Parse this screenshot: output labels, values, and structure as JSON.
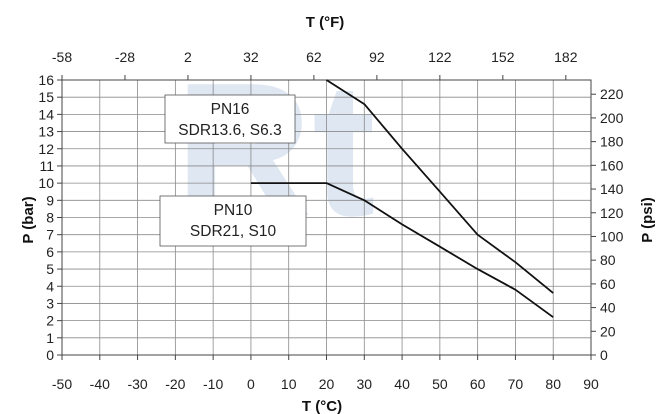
{
  "chart_data": {
    "type": "line",
    "xlabel": "T (°C)",
    "ylabel": "P (bar)",
    "x2label": "T (°F)",
    "y2label": "P (psi)",
    "xlim": [
      -50,
      90
    ],
    "ylim": [
      0,
      16
    ],
    "x2lim": [
      -58,
      194
    ],
    "y2lim": [
      0,
      232
    ],
    "x_ticks": [
      "-50",
      "-40",
      "-30",
      "-20",
      "-10",
      "0",
      "10",
      "20",
      "30",
      "40",
      "50",
      "60",
      "70",
      "80",
      "90"
    ],
    "y_ticks": [
      "0",
      "1",
      "2",
      "3",
      "4",
      "5",
      "6",
      "7",
      "8",
      "9",
      "10",
      "11",
      "12",
      "13",
      "14",
      "15",
      "16"
    ],
    "x2_ticks": [
      "-58",
      "-28",
      "2",
      "32",
      "62",
      "92",
      "122",
      "152",
      "182"
    ],
    "y2_ticks": [
      "0",
      "20",
      "40",
      "60",
      "80",
      "100",
      "120",
      "140",
      "160",
      "180",
      "200",
      "220"
    ],
    "grid": true,
    "series": [
      {
        "name": "PN16",
        "x": [
          20,
          30,
          40,
          50,
          60,
          70,
          80
        ],
        "y": [
          16,
          14.6,
          12,
          9.5,
          7,
          5.4,
          3.6
        ]
      },
      {
        "name": "PN10",
        "x": [
          0,
          20,
          30,
          40,
          50,
          60,
          70,
          80
        ],
        "y": [
          10,
          10,
          9,
          7.6,
          6.3,
          5,
          3.8,
          2.2
        ]
      }
    ],
    "annotations": [
      {
        "series": "PN16",
        "lines": [
          "PN16",
          "SDR13.6, S6.3"
        ]
      },
      {
        "series": "PN10",
        "lines": [
          "PN10",
          "SDR21, S10"
        ]
      }
    ],
    "watermark": "Rt"
  }
}
